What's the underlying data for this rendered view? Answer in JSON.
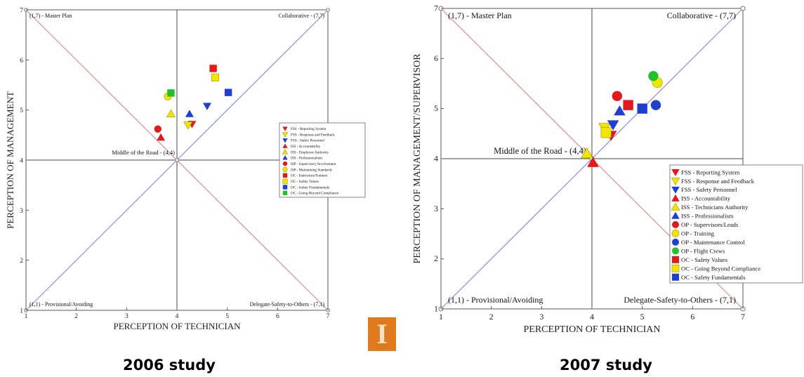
{
  "chart_data": [
    {
      "type": "scatter",
      "caption": "2006 study",
      "xlabel": "PERCEPTION OF TECHNICIAN",
      "ylabel": "PERCEPTION OF MANAGEMENT",
      "xlim": [
        1,
        7
      ],
      "ylim": [
        1,
        7
      ],
      "x_ticks": [
        "1",
        "2",
        "3",
        "4",
        "5",
        "6",
        "7"
      ],
      "y_ticks": [
        "1",
        "2",
        "3",
        "4",
        "5",
        "6",
        "7"
      ],
      "corner_labels": {
        "top_left": "(1,7) - Master Plan",
        "top_right": "Collaborative - (7,7)",
        "bottom_left": "(1,1) - Provisional/Avoiding",
        "bottom_right": "Delegate-Safety-to-Others - (7,1)",
        "middle": "Middle of the Road - (4,4)"
      },
      "legend_position": "right",
      "series": [
        {
          "name": "FSS - Reporting System",
          "marker": "tri-down",
          "color": "#e31a1c",
          "x": 4.3,
          "y": 4.72
        },
        {
          "name": "FSS - Response and Feedback",
          "marker": "tri-down",
          "color": "#f2e600",
          "x": 4.22,
          "y": 4.7
        },
        {
          "name": "FSS - Safety Personnel",
          "marker": "tri-down",
          "color": "#1f3fd0",
          "x": 4.6,
          "y": 5.08
        },
        {
          "name": "ISS - Accountability",
          "marker": "tri-up",
          "color": "#e31a1c",
          "x": 3.68,
          "y": 4.45
        },
        {
          "name": "ISS - Employee Authority",
          "marker": "tri-up",
          "color": "#f2e600",
          "x": 3.88,
          "y": 4.92
        },
        {
          "name": "ISS - Professionalism",
          "marker": "tri-up",
          "color": "#1f3fd0",
          "x": 4.25,
          "y": 4.92
        },
        {
          "name": "ISP - Supervisory Involvement",
          "marker": "circle",
          "color": "#e31a1c",
          "x": 3.62,
          "y": 4.62
        },
        {
          "name": "ISP - Maintaining Standards",
          "marker": "circle",
          "color": "#f2e600",
          "x": 3.82,
          "y": 5.27
        },
        {
          "name": "OC - Instructors/Trainers",
          "marker": "square",
          "color": "#e31a1c",
          "x": 4.72,
          "y": 5.83
        },
        {
          "name": "OC - Safety Values",
          "marker": "square",
          "color": "#f2e600",
          "x": 4.76,
          "y": 5.65
        },
        {
          "name": "OC - Safety Fundamentals",
          "marker": "square",
          "color": "#1f3fd0",
          "x": 5.02,
          "y": 5.35
        },
        {
          "name": "OC - Going Beyond Compliance",
          "marker": "square",
          "color": "#22c02a",
          "x": 3.88,
          "y": 5.34
        }
      ]
    },
    {
      "type": "scatter",
      "caption": "2007 study",
      "xlabel": "PERCEPTION OF TECHNICIAN",
      "ylabel": "PERCEPTION OF MANAGEMENT/SUPERVISOR",
      "xlim": [
        1,
        7
      ],
      "ylim": [
        1,
        7
      ],
      "x_ticks": [
        "1",
        "2",
        "3",
        "4",
        "5",
        "6",
        "7"
      ],
      "y_ticks": [
        "1",
        "2",
        "3",
        "4",
        "5",
        "6",
        "7"
      ],
      "corner_labels": {
        "top_left": "(1,7) - Master Plan",
        "top_right": "Collaborative - (7,7)",
        "bottom_left": "(1,1) - Provisional/Avoiding",
        "bottom_right": "Delegate-Safety-to-Others - (7,1)",
        "middle": "Middle of the Road - (4,4)"
      },
      "legend_position": "right",
      "series": [
        {
          "name": "FSS - Reporting System",
          "marker": "tri-down",
          "color": "#e31a1c",
          "x": 4.38,
          "y": 4.47
        },
        {
          "name": "FSS - Response and Feedback",
          "marker": "tri-down",
          "color": "#f2e600",
          "x": 4.25,
          "y": 4.62
        },
        {
          "name": "FSS - Safety Personnel",
          "marker": "tri-down",
          "color": "#1f3fd0",
          "x": 4.42,
          "y": 4.68
        },
        {
          "name": "ISS - Accountability",
          "marker": "tri-up",
          "color": "#e31a1c",
          "x": 4.02,
          "y": 3.92
        },
        {
          "name": "ISS - Technicians Authority",
          "marker": "tri-up",
          "color": "#f2e600",
          "x": 3.9,
          "y": 4.1
        },
        {
          "name": "ISS - Professionalism",
          "marker": "tri-up",
          "color": "#1f3fd0",
          "x": 4.55,
          "y": 4.95
        },
        {
          "name": "OP - Supervisors/Leads",
          "marker": "circle",
          "color": "#e31a1c",
          "x": 4.5,
          "y": 5.25
        },
        {
          "name": "OP - Training",
          "marker": "circle",
          "color": "#f2e600",
          "x": 5.3,
          "y": 5.52
        },
        {
          "name": "OP - Maintenance Control",
          "marker": "circle",
          "color": "#1f3fd0",
          "x": 5.27,
          "y": 5.07
        },
        {
          "name": "OP - Flight Crews",
          "marker": "circle",
          "color": "#22c02a",
          "x": 5.22,
          "y": 5.65
        },
        {
          "name": "OC - Safety Values",
          "marker": "square",
          "color": "#e31a1c",
          "x": 4.72,
          "y": 5.07
        },
        {
          "name": "OC - Going Beyond Compliance",
          "marker": "square",
          "color": "#f2e600",
          "x": 4.28,
          "y": 4.52
        },
        {
          "name": "OC - Safety Fundamentals",
          "marker": "square",
          "color": "#1f3fd0",
          "x": 5.0,
          "y": 5.0
        }
      ]
    }
  ],
  "captions": {
    "left": "2006 study",
    "right": "2007 study"
  },
  "logo": {
    "letter": "I",
    "color": "#e07a1f"
  }
}
